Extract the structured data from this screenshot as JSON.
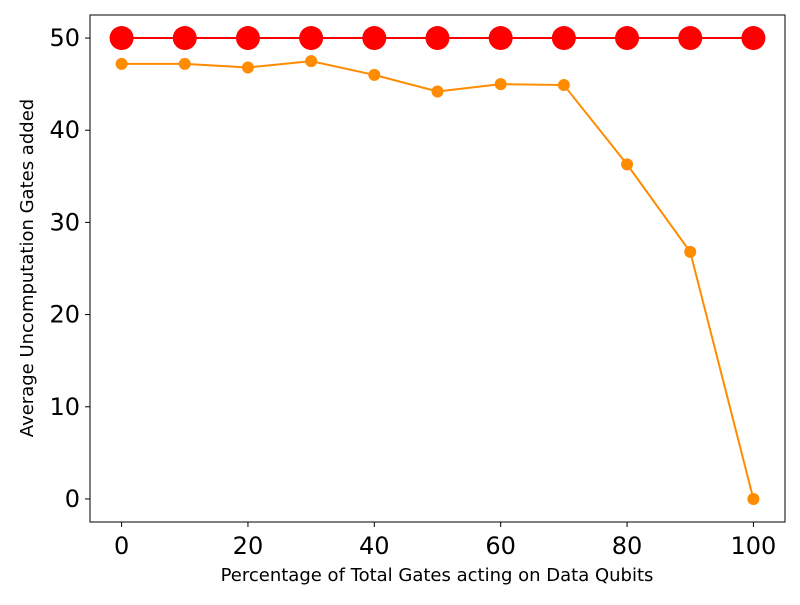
{
  "chart_data": {
    "type": "line",
    "xlabel": "Percentage of Total Gates acting on Data Qubits",
    "ylabel": "Average Uncomputation Gates added",
    "xlim": [
      -5,
      105
    ],
    "ylim": [
      -2.5,
      52.5
    ],
    "x_ticks": [
      0,
      20,
      40,
      60,
      80,
      100
    ],
    "y_ticks": [
      0,
      10,
      20,
      30,
      40,
      50
    ],
    "grid": false,
    "legend": "none",
    "x": [
      0,
      10,
      20,
      30,
      40,
      50,
      60,
      70,
      80,
      90,
      100
    ],
    "series": [
      {
        "values": [
          50,
          50,
          50,
          50,
          50,
          50,
          50,
          50,
          50,
          50,
          50
        ],
        "color": "#ff0000",
        "marker": "circle-large"
      },
      {
        "values": [
          47.2,
          47.2,
          46.8,
          47.5,
          46.0,
          44.2,
          45.0,
          44.9,
          36.3,
          26.8,
          0
        ],
        "color": "#ff8c00",
        "marker": "circle-small"
      }
    ]
  }
}
